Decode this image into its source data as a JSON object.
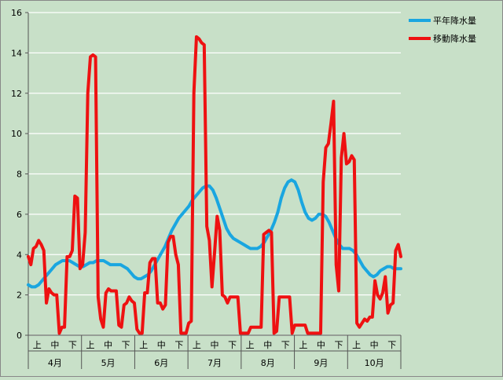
{
  "chart_data": {
    "type": "line",
    "title": "",
    "xlabel": "",
    "ylabel": "",
    "ylim": [
      0,
      16
    ],
    "yticks": [
      0,
      2,
      4,
      6,
      8,
      10,
      12,
      14,
      16
    ],
    "grid": true,
    "legend_position": "top-right",
    "background_color": "#c8e0c8",
    "grid_color": "#ffffff",
    "months": [
      "4月",
      "5月",
      "6月",
      "7月",
      "8月",
      "9月",
      "10月"
    ],
    "decades": [
      "上",
      "中",
      "下"
    ],
    "x_per_decade": 10,
    "series": [
      {
        "name": "平年降水量",
        "color": "#1aa6e0",
        "values": [
          2.5,
          2.4,
          2.4,
          2.5,
          2.7,
          2.9,
          3.1,
          3.3,
          3.5,
          3.6,
          3.7,
          3.7,
          3.7,
          3.6,
          3.5,
          3.4,
          3.4,
          3.5,
          3.6,
          3.6,
          3.7,
          3.7,
          3.7,
          3.6,
          3.5,
          3.5,
          3.5,
          3.5,
          3.4,
          3.3,
          3.1,
          2.9,
          2.8,
          2.8,
          2.9,
          3.0,
          3.2,
          3.5,
          3.8,
          4.1,
          4.4,
          4.8,
          5.2,
          5.5,
          5.8,
          6.0,
          6.2,
          6.4,
          6.7,
          6.9,
          7.1,
          7.3,
          7.4,
          7.4,
          7.2,
          6.8,
          6.3,
          5.8,
          5.3,
          5.0,
          4.8,
          4.7,
          4.6,
          4.5,
          4.4,
          4.3,
          4.3,
          4.3,
          4.4,
          4.6,
          4.9,
          5.2,
          5.6,
          6.1,
          6.8,
          7.3,
          7.6,
          7.7,
          7.6,
          7.2,
          6.6,
          6.1,
          5.8,
          5.7,
          5.8,
          6.0,
          6.0,
          5.9,
          5.6,
          5.2,
          4.8,
          4.5,
          4.3,
          4.3,
          4.3,
          4.2,
          4.0,
          3.7,
          3.4,
          3.2,
          3.0,
          2.9,
          3.0,
          3.2,
          3.3,
          3.4,
          3.4,
          3.3,
          3.3,
          3.3
        ]
      },
      {
        "name": "移動降水量",
        "color": "#ee1111",
        "values": [
          3.9,
          3.5,
          4.3,
          4.4,
          4.7,
          4.5,
          4.2,
          1.6,
          2.3,
          2.1,
          2.0,
          2.0,
          0.1,
          0.4,
          0.4,
          3.9,
          3.9,
          4.2,
          6.9,
          6.8,
          3.3,
          3.5,
          5.1,
          12.0,
          13.8,
          13.9,
          13.8,
          1.9,
          0.8,
          0.4,
          2.1,
          2.3,
          2.2,
          2.2,
          2.2,
          0.5,
          0.4,
          1.5,
          1.6,
          1.9,
          1.7,
          1.6,
          0.3,
          0.1,
          0.1,
          2.1,
          2.1,
          3.6,
          3.8,
          3.8,
          1.6,
          1.6,
          1.3,
          1.5,
          4.6,
          4.9,
          4.9,
          4.0,
          3.5,
          0.1,
          0.1,
          0.1,
          0.6,
          0.7,
          12.0,
          14.8,
          14.7,
          14.5,
          14.4,
          5.4,
          4.7,
          2.4,
          4.1,
          5.9,
          5.2,
          2.0,
          1.9,
          1.6,
          1.9,
          1.9,
          1.9,
          1.9,
          0.1,
          0.1,
          0.1,
          0.1,
          0.4,
          0.4,
          0.4,
          0.4,
          0.4,
          5.0,
          5.1,
          5.2,
          5.1,
          0.1,
          0.2,
          1.9,
          1.9,
          1.9,
          1.9,
          1.9,
          0.1,
          0.5,
          0.5,
          0.5,
          0.5,
          0.5,
          0.1,
          0.1,
          0.1,
          0.1,
          0.1,
          0.1,
          7.6,
          9.3,
          9.5,
          10.5,
          11.6,
          3.5,
          2.2,
          8.8,
          10.0,
          8.5,
          8.6,
          8.9,
          8.7,
          0.6,
          0.4,
          0.6,
          0.8,
          0.7,
          0.9,
          0.9,
          2.7,
          2.0,
          1.8,
          2.1,
          2.9,
          1.1,
          1.5,
          1.6,
          4.2,
          4.5,
          3.9
        ]
      }
    ]
  }
}
